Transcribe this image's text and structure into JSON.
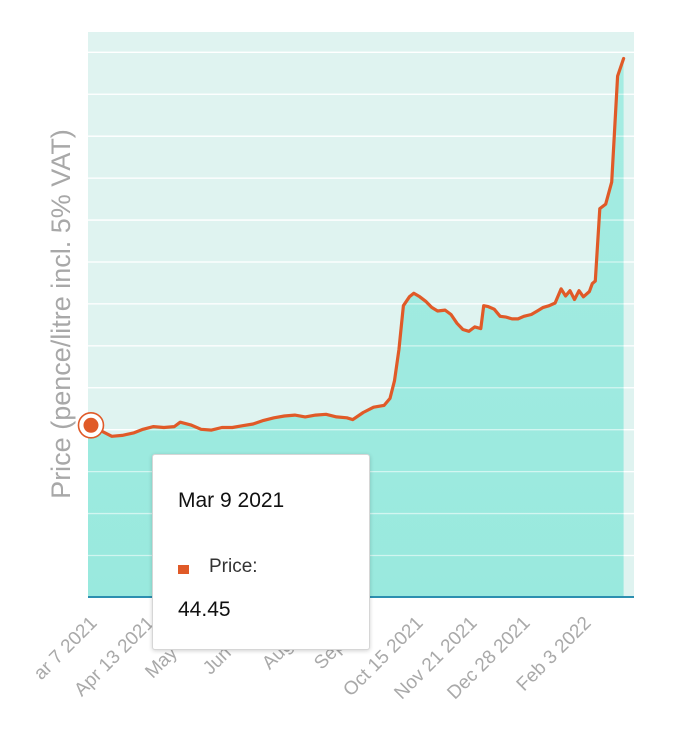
{
  "chart_data": {
    "type": "area",
    "title": "",
    "xlabel": "",
    "ylabel": "Price (pence/litre incl. 5% VAT)",
    "x_tick_labels": [
      "ar 7 2021",
      "Apr 13 2021",
      "May 20 2",
      "Jun 26 2",
      "Aug 2 2",
      "Sep 8 2",
      "Oct 15 2021",
      "Nov 21 2021",
      "Dec 28 2021",
      "Feb 3 2022"
    ],
    "x_range": [
      "2021-03-07",
      "2022-03-09"
    ],
    "series": [
      {
        "name": "Price",
        "color": "#e05a28",
        "points": [
          [
            "2021-03-09",
            44.45
          ],
          [
            "2021-03-16",
            43.8
          ],
          [
            "2021-03-23",
            43.2
          ],
          [
            "2021-03-30",
            43.3
          ],
          [
            "2021-04-07",
            43.6
          ],
          [
            "2021-04-13",
            44.0
          ],
          [
            "2021-04-20",
            44.3
          ],
          [
            "2021-04-27",
            44.2
          ],
          [
            "2021-05-04",
            44.3
          ],
          [
            "2021-05-08",
            44.8
          ],
          [
            "2021-05-15",
            44.5
          ],
          [
            "2021-05-22",
            44.0
          ],
          [
            "2021-05-29",
            43.9
          ],
          [
            "2021-06-05",
            44.2
          ],
          [
            "2021-06-12",
            44.2
          ],
          [
            "2021-06-19",
            44.4
          ],
          [
            "2021-06-26",
            44.6
          ],
          [
            "2021-07-03",
            45.0
          ],
          [
            "2021-07-10",
            45.3
          ],
          [
            "2021-07-17",
            45.5
          ],
          [
            "2021-07-24",
            45.6
          ],
          [
            "2021-07-31",
            45.4
          ],
          [
            "2021-08-07",
            45.6
          ],
          [
            "2021-08-14",
            45.7
          ],
          [
            "2021-08-21",
            45.4
          ],
          [
            "2021-08-28",
            45.3
          ],
          [
            "2021-09-01",
            45.1
          ],
          [
            "2021-09-08",
            45.9
          ],
          [
            "2021-09-15",
            46.5
          ],
          [
            "2021-09-22",
            46.7
          ],
          [
            "2021-09-26",
            47.5
          ],
          [
            "2021-09-29",
            49.5
          ],
          [
            "2021-10-02",
            53.0
          ],
          [
            "2021-10-05",
            58.0
          ],
          [
            "2021-10-09",
            59.0
          ],
          [
            "2021-10-12",
            59.4
          ],
          [
            "2021-10-16",
            59.0
          ],
          [
            "2021-10-20",
            58.5
          ],
          [
            "2021-10-24",
            57.8
          ],
          [
            "2021-10-28",
            57.4
          ],
          [
            "2021-11-02",
            57.5
          ],
          [
            "2021-11-06",
            57.0
          ],
          [
            "2021-11-10",
            56.0
          ],
          [
            "2021-11-14",
            55.3
          ],
          [
            "2021-11-18",
            55.1
          ],
          [
            "2021-11-22",
            55.6
          ],
          [
            "2021-11-26",
            55.4
          ],
          [
            "2021-11-28",
            58.0
          ],
          [
            "2021-12-01",
            57.9
          ],
          [
            "2021-12-05",
            57.6
          ],
          [
            "2021-12-09",
            56.8
          ],
          [
            "2021-12-13",
            56.7
          ],
          [
            "2021-12-17",
            56.5
          ],
          [
            "2021-12-21",
            56.5
          ],
          [
            "2021-12-25",
            56.8
          ],
          [
            "2021-12-30",
            57.0
          ],
          [
            "2022-01-03",
            57.4
          ],
          [
            "2022-01-07",
            57.8
          ],
          [
            "2022-01-11",
            58.0
          ],
          [
            "2022-01-15",
            58.3
          ],
          [
            "2022-01-19",
            59.9
          ],
          [
            "2022-01-22",
            59.1
          ],
          [
            "2022-01-25",
            59.7
          ],
          [
            "2022-01-28",
            58.7
          ],
          [
            "2022-01-31",
            59.7
          ],
          [
            "2022-02-03",
            59.0
          ],
          [
            "2022-02-07",
            59.6
          ],
          [
            "2022-02-09",
            60.5
          ],
          [
            "2022-02-11",
            60.8
          ],
          [
            "2022-02-14",
            69.0
          ],
          [
            "2022-02-18",
            69.5
          ],
          [
            "2022-02-22",
            72.0
          ],
          [
            "2022-02-26",
            84.0
          ],
          [
            "2022-03-02",
            86.0
          ]
        ]
      }
    ],
    "ylim": [
      25,
      89
    ],
    "grid": true,
    "tooltip": {
      "date": "Mar 9 2021",
      "series_label": "Price:",
      "value": "44.45"
    }
  }
}
